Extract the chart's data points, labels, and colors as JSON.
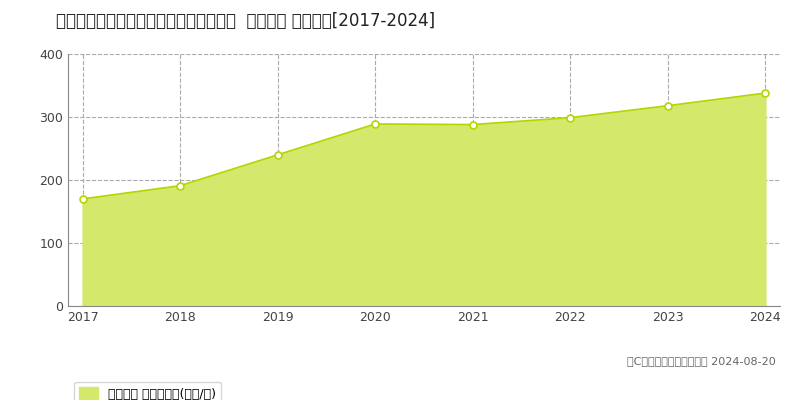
{
  "title": "愛知県名古屋市中区栄５丁目１１３番外  地価公示 地価推移[2017-2024]",
  "years": [
    2017,
    2018,
    2019,
    2020,
    2021,
    2022,
    2023,
    2024
  ],
  "values": [
    170,
    191,
    240,
    289,
    288,
    299,
    318,
    338
  ],
  "ylim": [
    0,
    400
  ],
  "yticks": [
    0,
    100,
    200,
    300,
    400
  ],
  "fill_color": "#d4e96b",
  "line_color": "#b8d400",
  "marker_face": "#ffffff",
  "grid_color": "#aaaaaa",
  "bg_color": "#ffffff",
  "legend_label": "地価公示 平均坪単価(万円/坪)",
  "copyright_text": "（C）土地価格ドットコム 2024-08-20",
  "title_fontsize": 12,
  "tick_fontsize": 9,
  "legend_fontsize": 9,
  "copyright_fontsize": 8
}
